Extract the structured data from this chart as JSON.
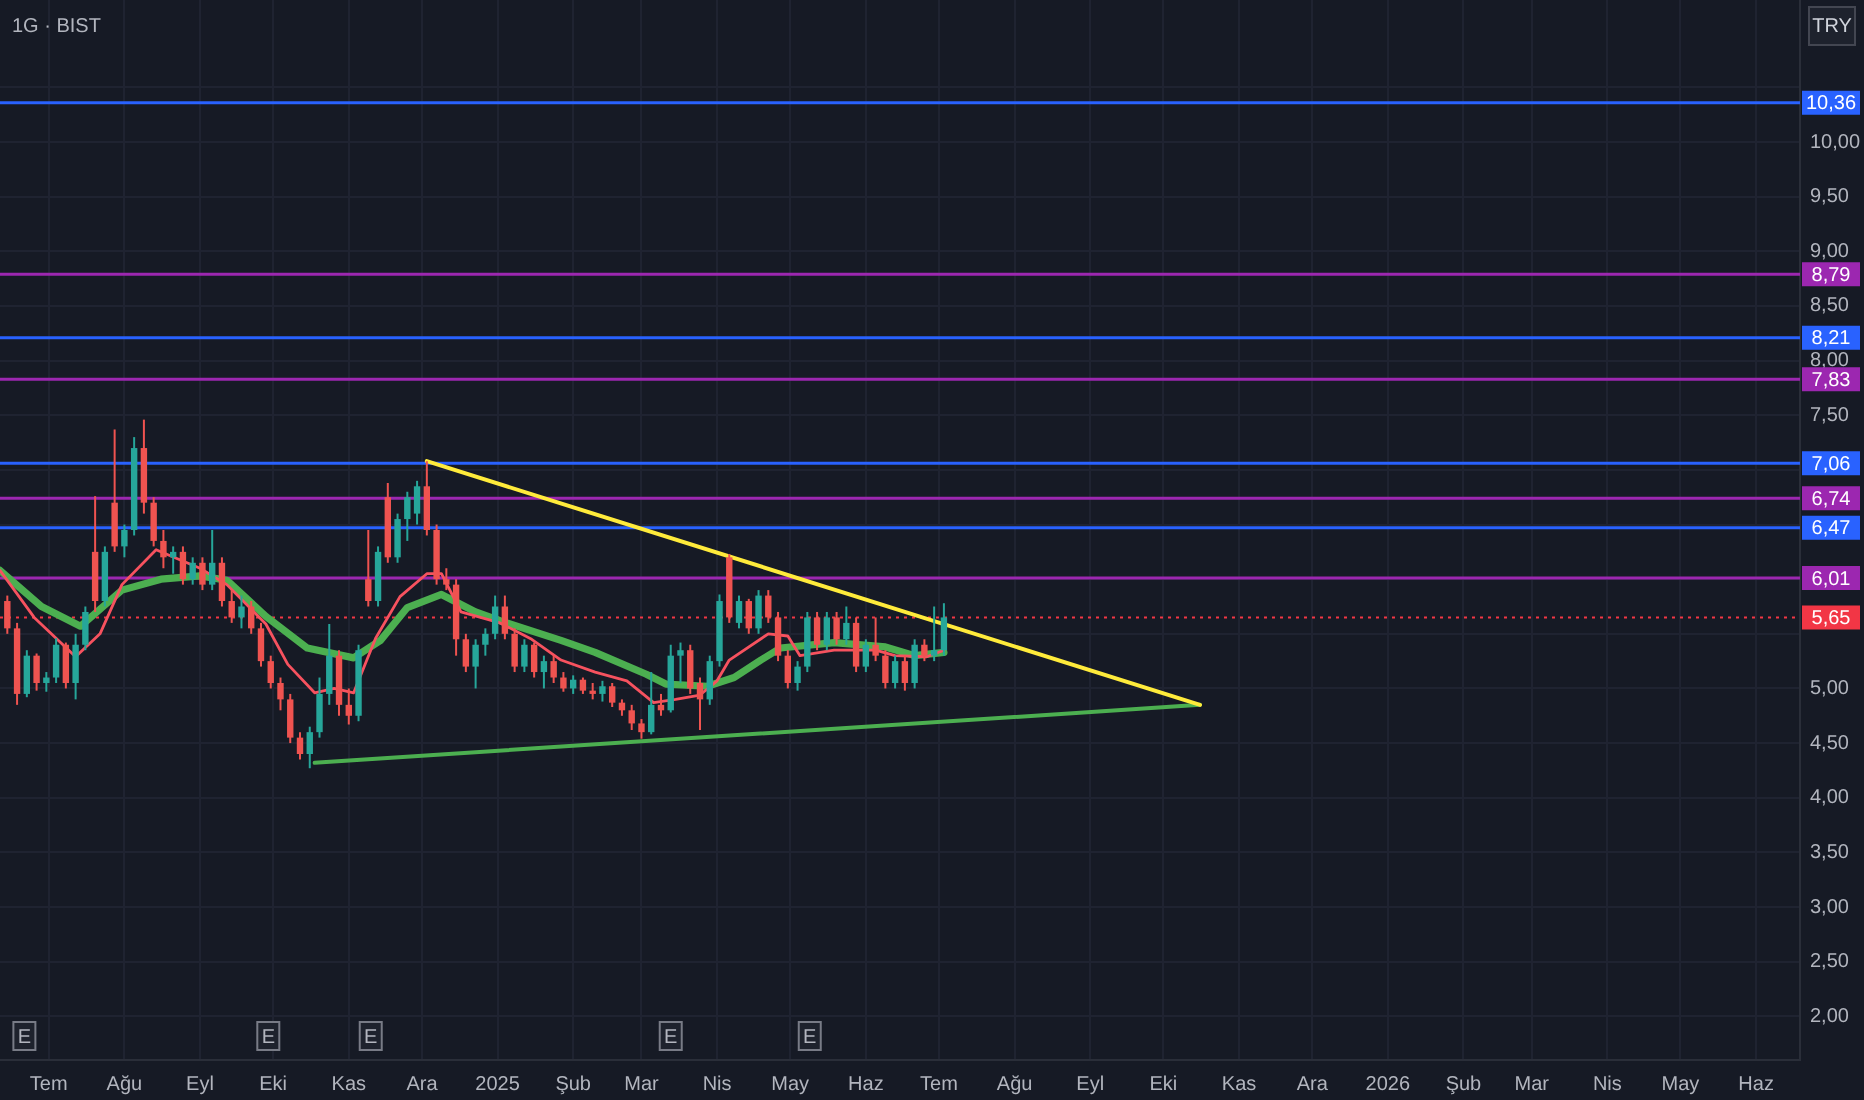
{
  "chart_data": {
    "type": "candlestick",
    "title": "1G · BIST",
    "ylabel": "TRY",
    "xlim": [
      "2024-06-11",
      "2026-06-19"
    ],
    "xticks": [
      {
        "value": "2024-07-01",
        "label": "Tem"
      },
      {
        "value": "2024-08-01",
        "label": "Ağu"
      },
      {
        "value": "2024-09-01",
        "label": "Eyl"
      },
      {
        "value": "2024-10-01",
        "label": "Eki"
      },
      {
        "value": "2024-11-01",
        "label": "Kas"
      },
      {
        "value": "2024-12-01",
        "label": "Ara"
      },
      {
        "value": "2025-01-01",
        "label": "2025"
      },
      {
        "value": "2025-02-01",
        "label": "Şub"
      },
      {
        "value": "2025-03-01",
        "label": "Mar"
      },
      {
        "value": "2025-04-01",
        "label": "Nis"
      },
      {
        "value": "2025-05-01",
        "label": "May"
      },
      {
        "value": "2025-06-01",
        "label": "Haz"
      },
      {
        "value": "2025-07-01",
        "label": "Tem"
      },
      {
        "value": "2025-08-01",
        "label": "Ağu"
      },
      {
        "value": "2025-09-01",
        "label": "Eyl"
      },
      {
        "value": "2025-10-01",
        "label": "Eki"
      },
      {
        "value": "2025-11-01",
        "label": "Kas"
      },
      {
        "value": "2025-12-01",
        "label": "Ara"
      },
      {
        "value": "2026-01-01",
        "label": "2026"
      },
      {
        "value": "2026-02-01",
        "label": "Şub"
      },
      {
        "value": "2026-03-01",
        "label": "Mar"
      },
      {
        "value": "2026-04-01",
        "label": "Nis"
      },
      {
        "value": "2026-05-01",
        "label": "May"
      },
      {
        "value": "2026-06-01",
        "label": "Haz"
      }
    ],
    "ylim": [
      1.6,
      11.3
    ],
    "yticks": [
      {
        "value": 2,
        "label": "2,00"
      },
      {
        "value": 2.5,
        "label": "2,50"
      },
      {
        "value": 3,
        "label": "3,00"
      },
      {
        "value": 3.5,
        "label": "3,50"
      },
      {
        "value": 4,
        "label": "4,00"
      },
      {
        "value": 4.5,
        "label": "4,50"
      },
      {
        "value": 5,
        "label": "5,00"
      },
      {
        "value": 5.5,
        "label": null
      },
      {
        "value": 6,
        "label": null
      },
      {
        "value": 6.5,
        "label": null
      },
      {
        "value": 7,
        "label": null
      },
      {
        "value": 7.5,
        "label": "7,50"
      },
      {
        "value": 8,
        "label": "8,00"
      },
      {
        "value": 8.5,
        "label": "8,50"
      },
      {
        "value": 9,
        "label": "9,00"
      },
      {
        "value": 9.5,
        "label": "9,50"
      },
      {
        "value": 10,
        "label": "10,00"
      },
      {
        "value": 10.5,
        "label": null
      }
    ],
    "grid": true,
    "series": [
      {
        "x": [
          "2024-06-14",
          "2024-06-18",
          "2024-06-22",
          "2024-06-26",
          "2024-06-30",
          "2024-07-04",
          "2024-07-08",
          "2024-07-12",
          "2024-07-16",
          "2024-07-20",
          "2024-07-24",
          "2024-07-28",
          "2024-08-01",
          "2024-08-05",
          "2024-08-09",
          "2024-08-13",
          "2024-08-17",
          "2024-08-21",
          "2024-08-25",
          "2024-08-29",
          "2024-09-02",
          "2024-09-06",
          "2024-09-10",
          "2024-09-14",
          "2024-09-18",
          "2024-09-22",
          "2024-09-26",
          "2024-09-30",
          "2024-10-04",
          "2024-10-08",
          "2024-10-12",
          "2024-10-16",
          "2024-10-20",
          "2024-10-24",
          "2024-10-28",
          "2024-11-01",
          "2024-11-05",
          "2024-11-09",
          "2024-11-13",
          "2024-11-17",
          "2024-11-21",
          "2024-11-25",
          "2024-11-29",
          "2024-12-03",
          "2024-12-07",
          "2024-12-11",
          "2024-12-15",
          "2024-12-19",
          "2024-12-23",
          "2024-12-27",
          "2024-12-31",
          "2025-01-04",
          "2025-01-08",
          "2025-01-12",
          "2025-01-16",
          "2025-01-20",
          "2025-01-24",
          "2025-01-28",
          "2025-02-01",
          "2025-02-05",
          "2025-02-09",
          "2025-02-13",
          "2025-02-17",
          "2025-02-21",
          "2025-02-25",
          "2025-03-01",
          "2025-03-05",
          "2025-03-09",
          "2025-03-13",
          "2025-03-17",
          "2025-03-21",
          "2025-03-25",
          "2025-03-29",
          "2025-04-02",
          "2025-04-06",
          "2025-04-10",
          "2025-04-14",
          "2025-04-18",
          "2025-04-22",
          "2025-04-26",
          "2025-04-30",
          "2025-05-04",
          "2025-05-08",
          "2025-05-12",
          "2025-05-16",
          "2025-05-20",
          "2025-05-24",
          "2025-05-28",
          "2025-06-01",
          "2025-06-05",
          "2025-06-09",
          "2025-06-13",
          "2025-06-17",
          "2025-06-21",
          "2025-06-25",
          "2025-06-29",
          "2025-07-03"
        ],
        "ohlc": [
          [
            5.8,
            5.85,
            5.5,
            5.55
          ],
          [
            5.55,
            5.6,
            4.85,
            4.95
          ],
          [
            4.95,
            5.35,
            4.92,
            5.3
          ],
          [
            5.3,
            5.32,
            4.98,
            5.05
          ],
          [
            5.05,
            5.15,
            4.97,
            5.1
          ],
          [
            5.1,
            5.46,
            5.05,
            5.4
          ],
          [
            5.4,
            5.42,
            5.0,
            5.05
          ],
          [
            5.05,
            5.5,
            4.9,
            5.4
          ],
          [
            5.4,
            5.75,
            5.35,
            5.7
          ],
          [
            6.25,
            6.76,
            5.7,
            5.8
          ],
          [
            5.8,
            6.3,
            5.75,
            6.25
          ],
          [
            6.7,
            7.37,
            6.25,
            6.3
          ],
          [
            6.3,
            6.5,
            6.2,
            6.45
          ],
          [
            6.45,
            7.3,
            6.4,
            7.2
          ],
          [
            7.2,
            7.46,
            6.6,
            6.7
          ],
          [
            6.7,
            6.75,
            6.3,
            6.35
          ],
          [
            6.35,
            6.45,
            6.1,
            6.2
          ],
          [
            6.2,
            6.3,
            6.05,
            6.25
          ],
          [
            6.25,
            6.3,
            5.95,
            6.0
          ],
          [
            6.0,
            6.2,
            5.95,
            6.15
          ],
          [
            6.15,
            6.2,
            5.9,
            5.95
          ],
          [
            5.95,
            6.45,
            5.9,
            6.15
          ],
          [
            6.15,
            6.2,
            5.75,
            5.8
          ],
          [
            5.8,
            5.9,
            5.6,
            5.65
          ],
          [
            5.65,
            5.85,
            5.55,
            5.75
          ],
          [
            5.75,
            5.8,
            5.5,
            5.55
          ],
          [
            5.55,
            5.6,
            5.2,
            5.25
          ],
          [
            5.25,
            5.3,
            5.0,
            5.05
          ],
          [
            5.05,
            5.1,
            4.8,
            4.9
          ],
          [
            4.9,
            4.95,
            4.5,
            4.55
          ],
          [
            4.55,
            4.6,
            4.35,
            4.4
          ],
          [
            4.4,
            4.65,
            4.27,
            4.6
          ],
          [
            4.6,
            5.1,
            4.55,
            4.95
          ],
          [
            4.95,
            5.59,
            4.85,
            5.3
          ],
          [
            5.3,
            5.35,
            4.75,
            4.85
          ],
          [
            4.85,
            5.0,
            4.67,
            4.75
          ],
          [
            4.75,
            5.4,
            4.7,
            5.35
          ],
          [
            6.0,
            6.45,
            5.75,
            5.8
          ],
          [
            5.8,
            6.3,
            5.75,
            6.25
          ],
          [
            6.75,
            6.88,
            6.15,
            6.2
          ],
          [
            6.2,
            6.6,
            6.15,
            6.55
          ],
          [
            6.55,
            6.8,
            6.35,
            6.75
          ],
          [
            6.6,
            6.9,
            6.5,
            6.85
          ],
          [
            6.85,
            7.08,
            6.4,
            6.45
          ],
          [
            6.45,
            6.5,
            5.95,
            6.0
          ],
          [
            6.0,
            6.1,
            5.9,
            5.95
          ],
          [
            5.95,
            6.0,
            5.3,
            5.45
          ],
          [
            5.45,
            5.5,
            5.15,
            5.2
          ],
          [
            5.2,
            5.45,
            5.0,
            5.4
          ],
          [
            5.4,
            5.55,
            5.3,
            5.5
          ],
          [
            5.5,
            5.85,
            5.45,
            5.75
          ],
          [
            5.75,
            5.85,
            5.45,
            5.5
          ],
          [
            5.5,
            5.55,
            5.15,
            5.2
          ],
          [
            5.2,
            5.45,
            5.15,
            5.4
          ],
          [
            5.4,
            5.42,
            5.1,
            5.15
          ],
          [
            5.15,
            5.3,
            5.0,
            5.25
          ],
          [
            5.25,
            5.3,
            5.05,
            5.1
          ],
          [
            5.1,
            5.15,
            4.97,
            5.0
          ],
          [
            5.0,
            5.12,
            4.95,
            5.08
          ],
          [
            5.08,
            5.1,
            4.95,
            4.98
          ],
          [
            4.98,
            5.05,
            4.9,
            4.95
          ],
          [
            4.95,
            5.07,
            4.88,
            5.02
          ],
          [
            5.02,
            5.05,
            4.83,
            4.87
          ],
          [
            4.87,
            4.9,
            4.75,
            4.8
          ],
          [
            4.8,
            4.85,
            4.62,
            4.68
          ],
          [
            4.68,
            4.72,
            4.54,
            4.6
          ],
          [
            4.6,
            5.15,
            4.58,
            4.85
          ],
          [
            4.85,
            4.95,
            4.75,
            4.8
          ],
          [
            4.8,
            5.4,
            4.78,
            5.3
          ],
          [
            5.3,
            5.42,
            5.05,
            5.35
          ],
          [
            5.35,
            5.4,
            4.95,
            5.0
          ],
          [
            5.05,
            5.1,
            4.62,
            4.9
          ],
          [
            4.9,
            5.3,
            4.85,
            5.25
          ],
          [
            5.25,
            5.86,
            5.2,
            5.8
          ],
          [
            6.2,
            6.23,
            5.6,
            5.65
          ],
          [
            5.6,
            5.85,
            5.55,
            5.8
          ],
          [
            5.8,
            5.82,
            5.5,
            5.55
          ],
          [
            5.55,
            5.9,
            5.5,
            5.85
          ],
          [
            5.85,
            5.9,
            5.6,
            5.65
          ],
          [
            5.65,
            5.7,
            5.25,
            5.3
          ],
          [
            5.3,
            5.35,
            5.0,
            5.05
          ],
          [
            5.05,
            5.25,
            4.98,
            5.2
          ],
          [
            5.2,
            5.7,
            5.15,
            5.65
          ],
          [
            5.65,
            5.7,
            5.35,
            5.4
          ],
          [
            5.4,
            5.7,
            5.35,
            5.65
          ],
          [
            5.65,
            5.7,
            5.4,
            5.45
          ],
          [
            5.45,
            5.75,
            5.4,
            5.6
          ],
          [
            5.6,
            5.65,
            5.15,
            5.2
          ],
          [
            5.2,
            5.45,
            5.15,
            5.4
          ],
          [
            5.4,
            5.65,
            5.25,
            5.3
          ],
          [
            5.3,
            5.35,
            5.0,
            5.05
          ],
          [
            5.05,
            5.3,
            5.0,
            5.25
          ],
          [
            5.25,
            5.3,
            4.98,
            5.05
          ],
          [
            5.05,
            5.45,
            5.0,
            5.4
          ],
          [
            5.4,
            5.45,
            5.25,
            5.3
          ],
          [
            5.3,
            5.75,
            5.25,
            5.35
          ],
          [
            5.35,
            5.78,
            5.3,
            5.65
          ]
        ],
        "colors": [
          "#ef5350",
          "#ef5350",
          "#26a69a",
          "#ef5350",
          "#26a69a",
          "#26a69a",
          "#ef5350",
          "#26a69a",
          "#26a69a",
          "#ef5350",
          "#26a69a",
          "#ef5350",
          "#26a69a",
          "#26a69a",
          "#ef5350",
          "#ef5350",
          "#ef5350",
          "#26a69a",
          "#ef5350",
          "#26a69a",
          "#ef5350",
          "#26a69a",
          "#ef5350",
          "#ef5350",
          "#26a69a",
          "#ef5350",
          "#ef5350",
          "#ef5350",
          "#ef5350",
          "#ef5350",
          "#ef5350",
          "#26a69a",
          "#26a69a",
          "#26a69a",
          "#ef5350",
          "#ef5350",
          "#26a69a",
          "#ef5350",
          "#26a69a",
          "#ef5350",
          "#26a69a",
          "#26a69a",
          "#26a69a",
          "#ef5350",
          "#ef5350",
          "#ef5350",
          "#ef5350",
          "#ef5350",
          "#26a69a",
          "#26a69a",
          "#26a69a",
          "#ef5350",
          "#ef5350",
          "#26a69a",
          "#ef5350",
          "#26a69a",
          "#ef5350",
          "#ef5350",
          "#26a69a",
          "#ef5350",
          "#ef5350",
          "#26a69a",
          "#ef5350",
          "#ef5350",
          "#ef5350",
          "#ef5350",
          "#26a69a",
          "#ef5350",
          "#26a69a",
          "#26a69a",
          "#ef5350",
          "#ef5350",
          "#26a69a",
          "#26a69a",
          "#ef5350",
          "#26a69a",
          "#ef5350",
          "#26a69a",
          "#ef5350",
          "#ef5350",
          "#ef5350",
          "#26a69a",
          "#26a69a",
          "#ef5350",
          "#26a69a",
          "#ef5350",
          "#26a69a",
          "#ef5350",
          "#26a69a",
          "#ef5350",
          "#ef5350",
          "#26a69a",
          "#ef5350",
          "#26a69a",
          "#ef5350",
          "#26a69a",
          "#26a69a"
        ]
      },
      {
        "type": "line",
        "color": "#f7525f",
        "x": [
          "2024-06-11",
          "2024-06-25",
          "2024-07-12",
          "2024-07-22",
          "2024-07-31",
          "2024-08-14",
          "2024-09-01",
          "2024-09-12",
          "2024-09-28",
          "2024-10-07",
          "2024-10-18",
          "2024-10-26",
          "2024-11-03",
          "2024-11-12",
          "2024-11-22",
          "2024-12-03",
          "2024-12-09",
          "2024-12-17",
          "2025-01-02",
          "2025-01-15",
          "2025-01-27",
          "2025-02-10",
          "2025-02-23",
          "2025-03-06",
          "2025-03-15",
          "2025-03-25",
          "2025-04-01",
          "2025-04-06",
          "2025-04-22",
          "2025-04-30",
          "2025-05-05",
          "2025-05-19",
          "2025-06-05",
          "2025-06-13",
          "2025-06-26",
          "2025-07-03"
        ],
        "values": [
          6.08,
          5.65,
          5.29,
          5.5,
          5.95,
          6.27,
          6.1,
          5.95,
          5.59,
          5.22,
          4.96,
          5.0,
          4.96,
          5.46,
          5.84,
          6.05,
          6.05,
          5.7,
          5.6,
          5.45,
          5.26,
          5.15,
          5.07,
          4.87,
          4.9,
          4.94,
          5.07,
          5.26,
          5.5,
          5.48,
          5.3,
          5.35,
          5.35,
          5.3,
          5.29,
          5.35
        ]
      },
      {
        "type": "line",
        "color": "#4caf50",
        "x": [
          "2024-06-11",
          "2024-06-28",
          "2024-07-14",
          "2024-07-31",
          "2024-08-16",
          "2024-09-01",
          "2024-09-12",
          "2024-09-28",
          "2024-10-15",
          "2024-11-03",
          "2024-11-14",
          "2024-11-25",
          "2024-12-09",
          "2024-12-23",
          "2025-01-02",
          "2025-01-27",
          "2025-02-10",
          "2025-03-03",
          "2025-03-11",
          "2025-03-28",
          "2025-04-08",
          "2025-04-19",
          "2025-04-27",
          "2025-05-19",
          "2025-06-09",
          "2025-06-21",
          "2025-07-03"
        ],
        "values": [
          6.08,
          5.75,
          5.57,
          5.9,
          6.0,
          6.03,
          5.99,
          5.66,
          5.37,
          5.28,
          5.44,
          5.74,
          5.86,
          5.7,
          5.62,
          5.44,
          5.33,
          5.13,
          5.04,
          5.02,
          5.1,
          5.26,
          5.37,
          5.42,
          5.38,
          5.3,
          5.33
        ]
      },
      {
        "type": "line",
        "color": "#ffeb3b",
        "x": [
          "2024-12-03",
          "2025-10-16"
        ],
        "values": [
          7.08,
          4.85
        ]
      },
      {
        "type": "line",
        "color": "#4caf50",
        "x": [
          "2024-10-18",
          "2025-10-16"
        ],
        "values": [
          4.32,
          4.85
        ]
      }
    ],
    "ref_lines": [
      {
        "axis": "y",
        "value": 10.36,
        "label": "10,36",
        "color": "#2962ff"
      },
      {
        "axis": "y",
        "value": 8.79,
        "label": "8,79",
        "color": "#9c27b0"
      },
      {
        "axis": "y",
        "value": 8.21,
        "label": "8,21",
        "color": "#2962ff"
      },
      {
        "axis": "y",
        "value": 7.83,
        "label": "7,83",
        "color": "#9c27b0"
      },
      {
        "axis": "y",
        "value": 7.06,
        "label": "7,06",
        "color": "#2962ff"
      },
      {
        "axis": "y",
        "value": 6.74,
        "label": "6,74",
        "color": "#9c27b0"
      },
      {
        "axis": "y",
        "value": 6.47,
        "label": "6,47",
        "color": "#2962ff"
      },
      {
        "axis": "y",
        "value": 6.01,
        "label": "6,01",
        "color": "#9c27b0"
      },
      {
        "axis": "y",
        "value": 5.65,
        "label": "5,65",
        "color": "#f23645",
        "line_style": "dotted"
      }
    ],
    "annotations": [
      {
        "text": "E",
        "x": "2024-06-21"
      },
      {
        "text": "E",
        "x": "2024-09-29"
      },
      {
        "text": "E",
        "x": "2024-11-10"
      },
      {
        "text": "E",
        "x": "2025-03-13"
      },
      {
        "text": "E",
        "x": "2025-05-09"
      }
    ]
  }
}
